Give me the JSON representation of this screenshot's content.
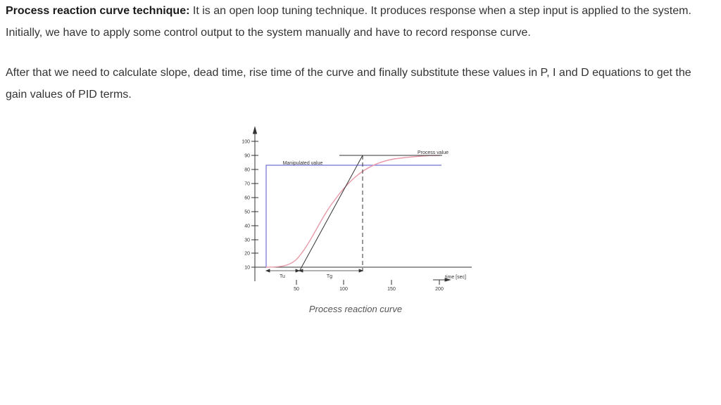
{
  "paragraph1": {
    "lead": "Process reaction curve technique:",
    "text": " It is an open loop tuning technique. It produces response when a step input is applied to the system. Initially, we have to apply some control output to the system manually and have to record response curve."
  },
  "paragraph2": {
    "text": "After that we need to calculate slope, dead time, rise time of the curve and finally substitute these values in P, I and D equations to get the gain values of PID terms."
  },
  "figure": {
    "caption": "Process reaction curve",
    "y_ticks": [
      "100",
      "90",
      "80",
      "70",
      "60",
      "50",
      "40",
      "30",
      "20",
      "10"
    ],
    "x_ticks": [
      "50",
      "100",
      "150",
      "200"
    ],
    "x_label": "time [sec]",
    "manipulated_label": "Manipulated value",
    "process_label": "Process value",
    "tu_label": "Tu",
    "tg_label": "Tg",
    "colors": {
      "manipulated": "#7070d8",
      "process": "#e89aa8",
      "axis": "#333333"
    }
  }
}
